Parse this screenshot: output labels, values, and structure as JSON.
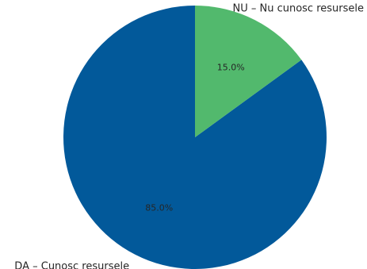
{
  "chart_data": {
    "type": "pie",
    "title": "",
    "slices": [
      {
        "label": "DA – Cunosc resursele",
        "value": 85.0,
        "pct_text": "85.0%",
        "color": "#02599a"
      },
      {
        "label": "NU – Nu cunosc resursele",
        "value": 15.0,
        "pct_text": "15.0%",
        "color": "#52b96d"
      }
    ],
    "start_angle_deg": 90,
    "direction": "counterclockwise",
    "legend": "none"
  }
}
